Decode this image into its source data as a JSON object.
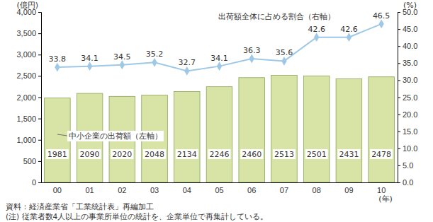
{
  "chart_data": {
    "type": "bar",
    "categories": [
      "00",
      "01",
      "02",
      "03",
      "04",
      "05",
      "06",
      "07",
      "08",
      "09",
      "10"
    ],
    "x_label": "(年)",
    "y_label": "(億円)",
    "y2_label": "(%)",
    "series": [
      {
        "name": "中小企業の出荷額（左軸）",
        "type": "bar",
        "color": "#d7e4a6",
        "values": [
          1981,
          2090,
          2020,
          2048,
          2134,
          2246,
          2460,
          2513,
          2501,
          2431,
          2478
        ]
      },
      {
        "name": "出荷額全体に占める割合（右軸）",
        "type": "line",
        "axis": "y2",
        "color": "#9ec8e6",
        "marker": "diamond",
        "values": [
          33.8,
          34.1,
          34.5,
          35.2,
          32.7,
          34.1,
          36.3,
          35.6,
          42.6,
          42.6,
          46.5
        ]
      }
    ],
    "ylim": [
      0,
      4000
    ],
    "yticks": [
      0,
      500,
      {
        "value": 1000,
        "label": "1,000"
      },
      {
        "value": 1500,
        "label": "1,500"
      },
      {
        "value": 2000,
        "label": "2,000"
      },
      {
        "value": 2500,
        "label": "2,500"
      },
      {
        "value": 3000,
        "label": "3,000"
      },
      {
        "value": 3500,
        "label": "3,500"
      },
      {
        "value": 4000,
        "label": "4,000"
      }
    ],
    "y2lim": [
      0,
      50
    ],
    "y2ticks": [
      {
        "value": 0,
        "label": "0.0"
      },
      {
        "value": 5,
        "label": "5.0"
      },
      {
        "value": 10,
        "label": "10.0"
      },
      {
        "value": 15,
        "label": "15.0"
      },
      {
        "value": 20,
        "label": "20.0"
      },
      {
        "value": 25,
        "label": "25.0"
      },
      {
        "value": 30,
        "label": "30.0"
      },
      {
        "value": 35,
        "label": "35.0"
      },
      {
        "value": 40,
        "label": "40.0"
      },
      {
        "value": 45,
        "label": "45.0"
      },
      {
        "value": 50,
        "label": "50.0"
      }
    ],
    "grid": false,
    "data_labels": true,
    "source": "資料：経済産業省「工業統計表」再編加工",
    "note": "(注)  従業者数4人以上の事業所単位の統計を、企業単位で再集計している。"
  }
}
